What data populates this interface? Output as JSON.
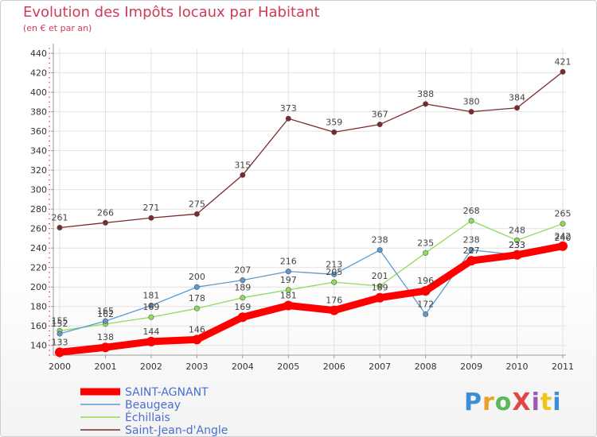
{
  "header": {
    "title": "Evolution des Impôts locaux par Habitant",
    "subtitle": "(en € et par an)"
  },
  "logo": {
    "text": "ProXiti",
    "colors": [
      "#3a8fd8",
      "#e8a02a",
      "#5cb85c",
      "#e04848",
      "#9b59b6",
      "#f0c419",
      "#3a8fd8"
    ]
  },
  "chart_data": {
    "type": "line",
    "title": "Evolution des Impôts locaux par Habitant",
    "subtitle": "(en € et par an)",
    "x": [
      "2000",
      "2001",
      "2002",
      "2003",
      "2004",
      "2005",
      "2006",
      "2007",
      "2008",
      "2009",
      "2010",
      "2011"
    ],
    "ylim": [
      130,
      445
    ],
    "yticks": [
      140,
      160,
      180,
      200,
      220,
      240,
      260,
      280,
      300,
      320,
      340,
      360,
      380,
      400,
      420,
      440
    ],
    "grid": true,
    "legend_position": "bottom-left",
    "series": [
      {
        "name": "SAINT-AGNANT",
        "color": "#ff0000",
        "values": [
          133,
          138,
          144,
          146,
          169,
          181,
          176,
          189,
          196,
          227,
          233,
          242
        ],
        "labels": [
          "133",
          "138",
          "144",
          "146",
          "169",
          "181",
          "176",
          "189",
          "196",
          "227",
          "233",
          "242"
        ],
        "show_labels": false
      },
      {
        "name": "Beaugeay",
        "color": "#5b9bd0",
        "values": [
          152,
          165,
          181,
          200,
          207,
          216,
          213,
          238,
          172,
          238,
          233,
          240
        ],
        "labels": [
          "152",
          "165",
          "181",
          "200",
          "207",
          "216",
          "213",
          "238",
          "172",
          "238",
          "233",
          "240"
        ],
        "show_labels": true
      },
      {
        "name": "Échillais",
        "color": "#8fdc5a",
        "values": [
          155,
          162,
          169,
          178,
          189,
          197,
          205,
          201,
          235,
          268,
          248,
          265
        ],
        "labels": [
          "155",
          "162",
          "169",
          "178",
          "189",
          "197",
          "205",
          "201",
          "235",
          "268",
          "248",
          "265"
        ],
        "show_labels": true
      },
      {
        "name": "Saint-Jean-d'Angle",
        "color": "#7a2a2a",
        "values": [
          261,
          266,
          271,
          275,
          315,
          373,
          359,
          367,
          388,
          380,
          384,
          421
        ],
        "labels": [
          "261",
          "266",
          "271",
          "275",
          "315",
          "373",
          "359",
          "367",
          "388",
          "380",
          "384",
          "421"
        ],
        "show_labels": true
      }
    ],
    "extra_labels": [
      {
        "series": "SAINT-AGNANT",
        "index": 0,
        "text": "133"
      },
      {
        "series": "SAINT-AGNANT",
        "index": 1,
        "text": "138"
      },
      {
        "series": "SAINT-AGNANT",
        "index": 2,
        "text": "144"
      },
      {
        "series": "SAINT-AGNANT",
        "index": 3,
        "text": "146"
      },
      {
        "series": "SAINT-AGNANT",
        "index": 4,
        "text": "169"
      },
      {
        "series": "SAINT-AGNANT",
        "index": 5,
        "text": "181"
      },
      {
        "series": "SAINT-AGNANT",
        "index": 6,
        "text": "176"
      },
      {
        "series": "SAINT-AGNANT",
        "index": 7,
        "text": "189"
      },
      {
        "series": "SAINT-AGNANT",
        "index": 8,
        "text": "196"
      },
      {
        "series": "SAINT-AGNANT",
        "index": 9,
        "text": "227"
      },
      {
        "series": "SAINT-AGNANT",
        "index": 10,
        "text": "233"
      },
      {
        "series": "SAINT-AGNANT",
        "index": 11,
        "text": "242"
      }
    ]
  }
}
